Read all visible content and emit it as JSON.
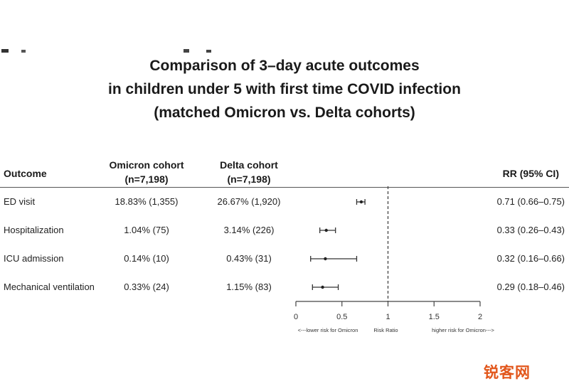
{
  "chart_data": {
    "type": "forest",
    "title_lines": [
      "Comparison of 3–day acute outcomes",
      "in children under 5 with first time COVID infection",
      "(matched Omicron vs. Delta cohorts)"
    ],
    "columns": {
      "outcome": "Outcome",
      "omicron_line1": "Omicron cohort",
      "omicron_line2": "(n=7,198)",
      "delta_line1": "Delta cohort",
      "delta_line2": "(n=7,198)",
      "rr": "RR (95% CI)"
    },
    "rows": [
      {
        "outcome": "ED visit",
        "omicron": "18.83% (1,355)",
        "delta": "26.67% (1,920)",
        "rr_text": "0.71 (0.66–0.75)",
        "rr": 0.71,
        "lo": 0.66,
        "hi": 0.75
      },
      {
        "outcome": "Hospitalization",
        "omicron": "1.04% (75)",
        "delta": "3.14% (226)",
        "rr_text": "0.33 (0.26–0.43)",
        "rr": 0.33,
        "lo": 0.26,
        "hi": 0.43
      },
      {
        "outcome": "ICU admission",
        "omicron": "0.14% (10)",
        "delta": "0.43% (31)",
        "rr_text": "0.32 (0.16–0.66)",
        "rr": 0.32,
        "lo": 0.16,
        "hi": 0.66
      },
      {
        "outcome": "Mechanical ventilation",
        "omicron": "0.33% (24)",
        "delta": "1.15% (83)",
        "rr_text": "0.29 (0.18–0.46)",
        "rr": 0.29,
        "lo": 0.18,
        "hi": 0.46
      }
    ],
    "x_axis": {
      "ticks": [
        0,
        0.5,
        1,
        1.5,
        2
      ],
      "tick_labels": [
        "0",
        "0.5",
        "1",
        "1.5",
        "2"
      ],
      "reference_line": 1,
      "reference_style": "dashed",
      "label_left": "<---lower risk for Omicron",
      "label_center": "Risk Ratio",
      "label_right": "higher risk for Omicron--->"
    },
    "xlim": [
      0,
      2
    ]
  },
  "watermark": "锐客网",
  "colors": {
    "text": "#222222",
    "rule": "#555555",
    "watermark": "#e2571c"
  }
}
